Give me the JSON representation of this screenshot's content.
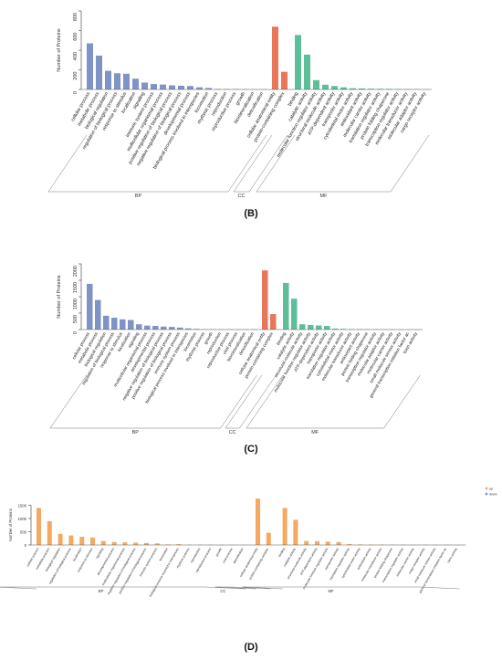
{
  "colors": {
    "bp": "#7f93c4",
    "cc": "#e8765b",
    "mf": "#5cbf9a",
    "up": "#f4a861",
    "down": "#6b9ad6",
    "axis": "#555555"
  },
  "chart_data": [
    {
      "panel_label": "(B)",
      "type": "bar",
      "ylabel": "Number of Proteins",
      "yticks": [
        0,
        200,
        400,
        600,
        800
      ],
      "ylim": [
        0,
        800
      ],
      "groups": [
        {
          "name": "BP",
          "color_key": "bp",
          "categories": [
            "cellular process",
            "metabolic process",
            "biological regulation",
            "regulation of biological process",
            "response to stimulus",
            "localization",
            "signaling",
            "immune system process",
            "multicellular organismal process",
            "positive regulation of biological process",
            "negative regulation of biological process",
            "developmental process",
            "biological process involved in interspecies",
            "locomotion",
            "rhythmic process",
            "reproduction",
            "reproductive process",
            "growth",
            "biomineralization",
            "detoxification"
          ],
          "values": [
            470,
            345,
            190,
            165,
            160,
            110,
            70,
            55,
            50,
            42,
            38,
            35,
            22,
            15,
            5,
            4,
            4,
            3,
            2,
            2
          ]
        },
        {
          "name": "CC",
          "color_key": "cc",
          "categories": [
            "cellular anatomical entity",
            "protein-containing complex"
          ],
          "values": [
            640,
            180
          ]
        },
        {
          "name": "MF",
          "color_key": "mf",
          "categories": [
            "binding",
            "catalytic activity",
            "molecular function regulator activity",
            "structural molecule activity",
            "ATP-dependent activity",
            "transporter activity",
            "cytoskeletal motor activity",
            "antioxidant activity",
            "molecular carrier activity",
            "translation regulator activity",
            "protein folding chaperone",
            "transcription regulator activity",
            "molecular transducer activity",
            "molecular adaptor activity",
            "cargo receptor activity"
          ],
          "values": [
            555,
            355,
            95,
            48,
            35,
            22,
            12,
            10,
            8,
            7,
            6,
            5,
            4,
            3,
            2
          ]
        }
      ]
    },
    {
      "panel_label": "(C)",
      "type": "bar",
      "ylabel": "Number of Proteins",
      "yticks": [
        0,
        500,
        1000,
        1500,
        2000
      ],
      "ylim": [
        0,
        2000
      ],
      "groups": [
        {
          "name": "BP",
          "color_key": "bp",
          "categories": [
            "cellular process",
            "metabolic process",
            "biological regulation",
            "regulation of biological process",
            "response to stimulus",
            "localization",
            "signaling",
            "multicellular organismal process",
            "developmental process",
            "negative regulation of biological process",
            "positive regulation of biological process",
            "immune system process",
            "biological process involved in interspecies",
            "locomotion",
            "rhythmic process",
            "growth",
            "reproduction",
            "reproductive process",
            "viral process",
            "biomineralization",
            "detoxification"
          ],
          "values": [
            1390,
            900,
            420,
            360,
            310,
            290,
            160,
            120,
            110,
            90,
            80,
            60,
            35,
            20,
            10,
            8,
            6,
            6,
            4,
            3,
            3
          ]
        },
        {
          "name": "CC",
          "color_key": "cc",
          "categories": [
            "cellular anatomical entity",
            "protein-containing complex"
          ],
          "values": [
            1800,
            470
          ]
        },
        {
          "name": "MF",
          "color_key": "mf",
          "categories": [
            "binding",
            "catalytic activity",
            "structural molecule activity",
            "molecular function regulator activity",
            "ATP-dependent activity",
            "transporter activity",
            "translation regulator activity",
            "cytoskeletal motor activity",
            "molecular transducer activity",
            "antioxidant activity",
            "protein folding chaperone",
            "transcription regulator activity",
            "molecular adaptor activity",
            "molecular carrier activity",
            "small molecule sensor activity",
            "general transcription initiation factor ac",
            "toxin activity"
          ],
          "values": [
            1420,
            940,
            160,
            140,
            125,
            110,
            30,
            20,
            15,
            12,
            10,
            8,
            6,
            5,
            3,
            2,
            2
          ]
        }
      ]
    },
    {
      "panel_label": "(D)",
      "type": "bar",
      "ylabel": "Number of Proteins",
      "yticks": [
        0,
        500,
        1000,
        1500
      ],
      "ylim": [
        0,
        2000
      ],
      "legend": {
        "position": "top-right",
        "entries": [
          {
            "name": "up",
            "color_key": "up"
          },
          {
            "name": "down",
            "color_key": "down"
          }
        ]
      },
      "groups": [
        {
          "name": "BP",
          "color_key": "up",
          "categories": [
            "cellular process",
            "metabolic process",
            "biological regulation",
            "regulation of biological process",
            "localization",
            "response to stimulus",
            "signaling",
            "developmental process",
            "multicellular organismal process",
            "negative regulation of biological process",
            "positive regulation of biological process",
            "immune system process",
            "locomotion",
            "biological process involved in interspecies",
            "rhythmic process",
            "reproduction",
            "reproductive process",
            "growth",
            "viral process",
            "detoxification"
          ],
          "values": [
            1400,
            900,
            420,
            360,
            310,
            280,
            150,
            110,
            100,
            85,
            75,
            60,
            20,
            30,
            10,
            6,
            6,
            6,
            4,
            3
          ]
        },
        {
          "name": "CC",
          "color_key": "up",
          "categories": [
            "cellular anatomical entity",
            "protein-containing complex"
          ],
          "values": [
            1750,
            460
          ]
        },
        {
          "name": "MF",
          "color_key": "up",
          "categories": [
            "binding",
            "catalytic activity",
            "structural molecule activity",
            "ATP-dependent activity",
            "molecular function regulator activity",
            "transporter activity",
            "translation regulator activity",
            "cytoskeletal motor activity",
            "antioxidant activity",
            "molecular transducer activity",
            "protein folding chaperone",
            "transcription regulator activity",
            "molecular carrier activity",
            "cargo receptor activity",
            "small molecule sensor activity",
            "general transcription initiation factor ac",
            "toxin activity"
          ],
          "values": [
            1400,
            950,
            150,
            140,
            125,
            110,
            30,
            20,
            12,
            15,
            10,
            8,
            5,
            3,
            3,
            2,
            2
          ]
        }
      ]
    }
  ]
}
